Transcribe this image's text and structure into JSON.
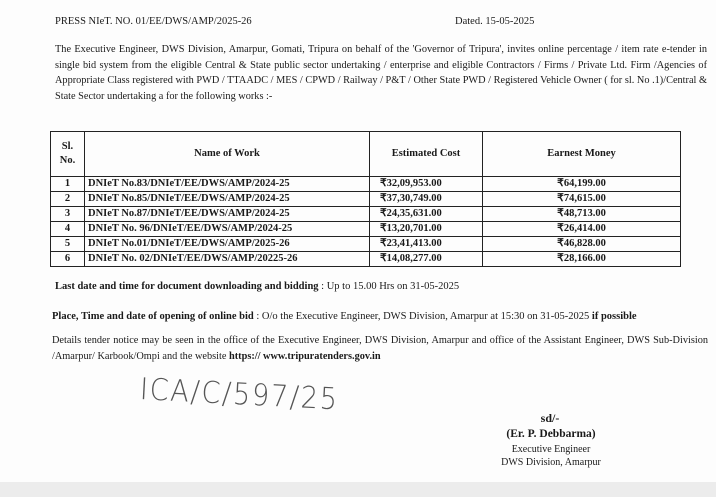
{
  "header": {
    "press_no": "PRESS NIeT. NO. 01/EE/DWS/AMP/2025-26",
    "dated": "Dated.  15-05-2025"
  },
  "intro": "The Executive Engineer, DWS Division, Amarpur, Gomati, Tripura on behalf of the 'Governor of Tripura', invites online percentage / item rate e-tender in single bid system from the eligible Central & State public sector undertaking / enterprise and eligible Contractors / Firms / Private Ltd. Firm /Agencies of Appropriate Class registered with PWD / TTAADC / MES / CPWD / Railway / P&T / Other State PWD / Registered Vehicle Owner ( for sl. No .1)/Central & State Sector undertaking a  for the following works :-",
  "table": {
    "headers": [
      "Sl. No.",
      "Name of Work",
      "Estimated Cost",
      "Earnest  Money"
    ],
    "rows": [
      [
        "1",
        "DNIeT No.83/DNIeT/EE/DWS/AMP/2024-25",
        "₹32,09,953.00",
        "₹64,199.00"
      ],
      [
        "2",
        "DNIeT No.85/DNIeT/EE/DWS/AMP/2024-25",
        "₹37,30,749.00",
        "₹74,615.00"
      ],
      [
        "3",
        "DNIeT No.87/DNIeT/EE/DWS/AMP/2024-25",
        "₹24,35,631.00",
        "₹48,713.00"
      ],
      [
        "4",
        "DNIeT No. 96/DNIeT/EE/DWS/AMP/2024-25",
        "₹13,20,701.00",
        "₹26,414.00"
      ],
      [
        "5",
        "DNIeT No.01/DNIeT/EE/DWS/AMP/2025-26",
        "₹23,41,413.00",
        "₹46,828.00"
      ],
      [
        "6",
        "DNIeT No. 02/DNIeT/EE/DWS/AMP/20225-26",
        "₹14,08,277.00",
        "₹28,166.00"
      ]
    ]
  },
  "last_date": {
    "label": "Last date and time for document downloading and bidding",
    "value": ": Up to 15.00 Hrs on 31-05-2025"
  },
  "opening": {
    "label": "Place, Time and date of opening of online bid",
    "value": " : O/o the Executive Engineer,  DWS Division, Amarpur  at 15:30 on 31-05-2025 ",
    "suffix": "if possible"
  },
  "details": {
    "text": "Details tender notice may be seen in the office of the Executive Engineer, DWS Division, Amarpur and office of the Assistant Engineer, DWS Sub-Division /Amarpur/ Karbook/Ompi and the website ",
    "website": "https:// www.tripuratenders.gov.in"
  },
  "handwritten": "ICA/C/597/25",
  "signature": {
    "sd": "sd/-",
    "name": "(Er. P. Debbarma)",
    "designation": "Executive Engineer",
    "office": "DWS Division, Amarpur"
  }
}
